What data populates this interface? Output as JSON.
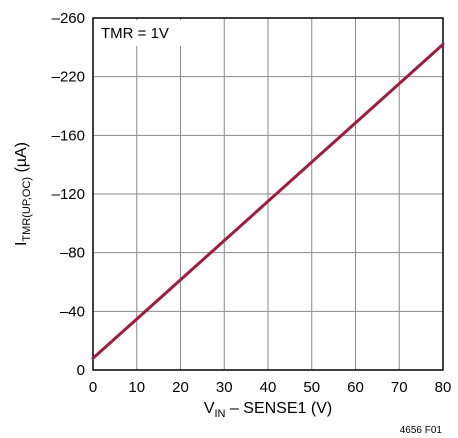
{
  "chart_data": {
    "type": "line",
    "title": "",
    "xlabel": {
      "main": "V",
      "sub": "IN",
      "rest": " – SENSE1 (V)"
    },
    "ylabel": {
      "main": "I",
      "sub": "TMR(UP,OC)",
      "rest": " (µA)"
    },
    "xlim": [
      0,
      80
    ],
    "ylim": [
      0,
      -260
    ],
    "x_ticks": [
      0,
      10,
      20,
      30,
      40,
      50,
      60,
      70,
      80
    ],
    "y_ticks": [
      0,
      -40,
      -80,
      -120,
      -160,
      -220,
      -260
    ],
    "y_ticks_display": [
      "0",
      "–40",
      "–80",
      "–120",
      "–160",
      "–220",
      "–260"
    ],
    "grid": true,
    "series": [
      {
        "x": [
          0,
          80
        ],
        "y": [
          -8,
          -242
        ]
      }
    ],
    "series_color": "#a01c3a",
    "annotation": "TMR = 1V",
    "figure_id": "4656 F01"
  }
}
